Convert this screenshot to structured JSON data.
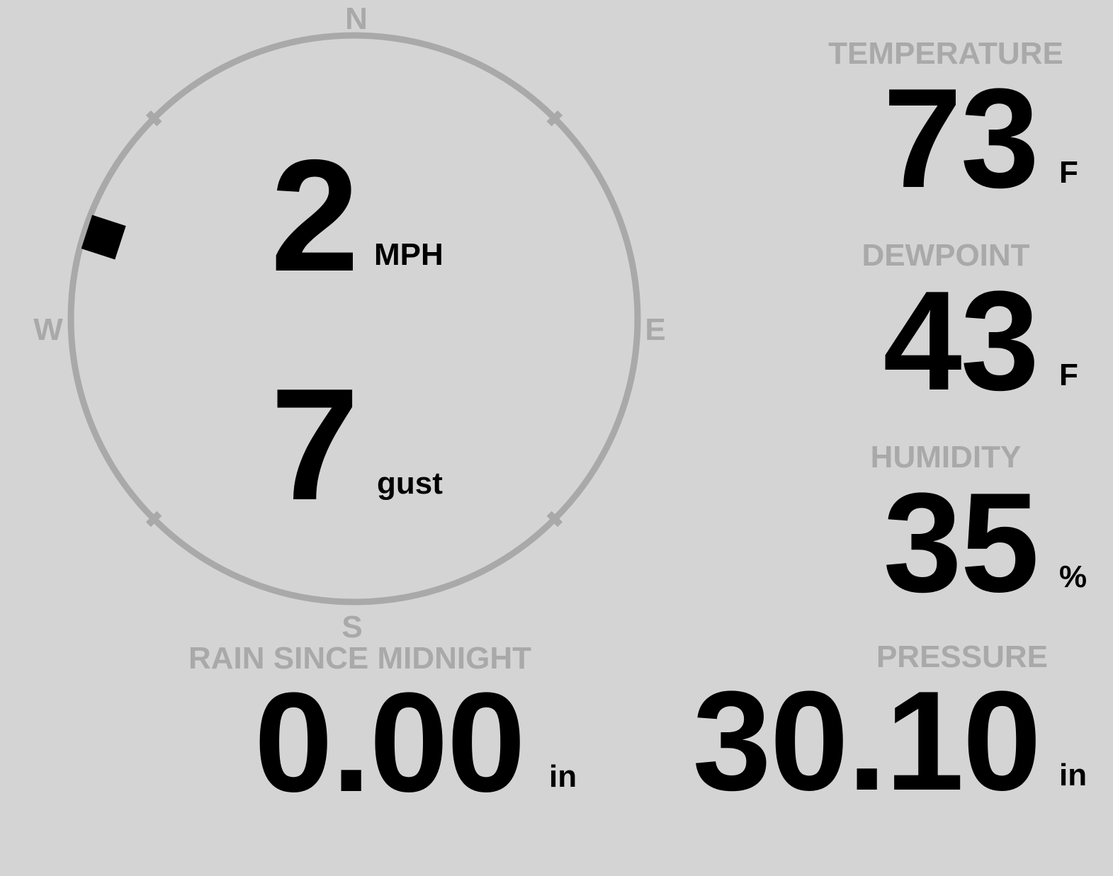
{
  "theme": {
    "background": "#d4d4d4",
    "muted_gray": "#a9a9a9",
    "value_black": "#000000"
  },
  "wind": {
    "speed": "2",
    "speed_unit": "MPH",
    "gust": "7",
    "gust_unit": "gust",
    "compass": {
      "north": "N",
      "east": "E",
      "south": "S",
      "west": "W",
      "direction_deg": 288
    }
  },
  "metrics": [
    {
      "label": "TEMPERATURE",
      "value": "73",
      "unit": "F"
    },
    {
      "label": "DEWPOINT",
      "value": "43",
      "unit": "F"
    },
    {
      "label": "HUMIDITY",
      "value": "35",
      "unit": "%"
    }
  ],
  "bottom_metrics": [
    {
      "label": "RAIN SINCE MIDNIGHT",
      "value": "0.00",
      "unit": "in"
    },
    {
      "label": "PRESSURE",
      "value": "30.10",
      "unit": "in"
    }
  ]
}
